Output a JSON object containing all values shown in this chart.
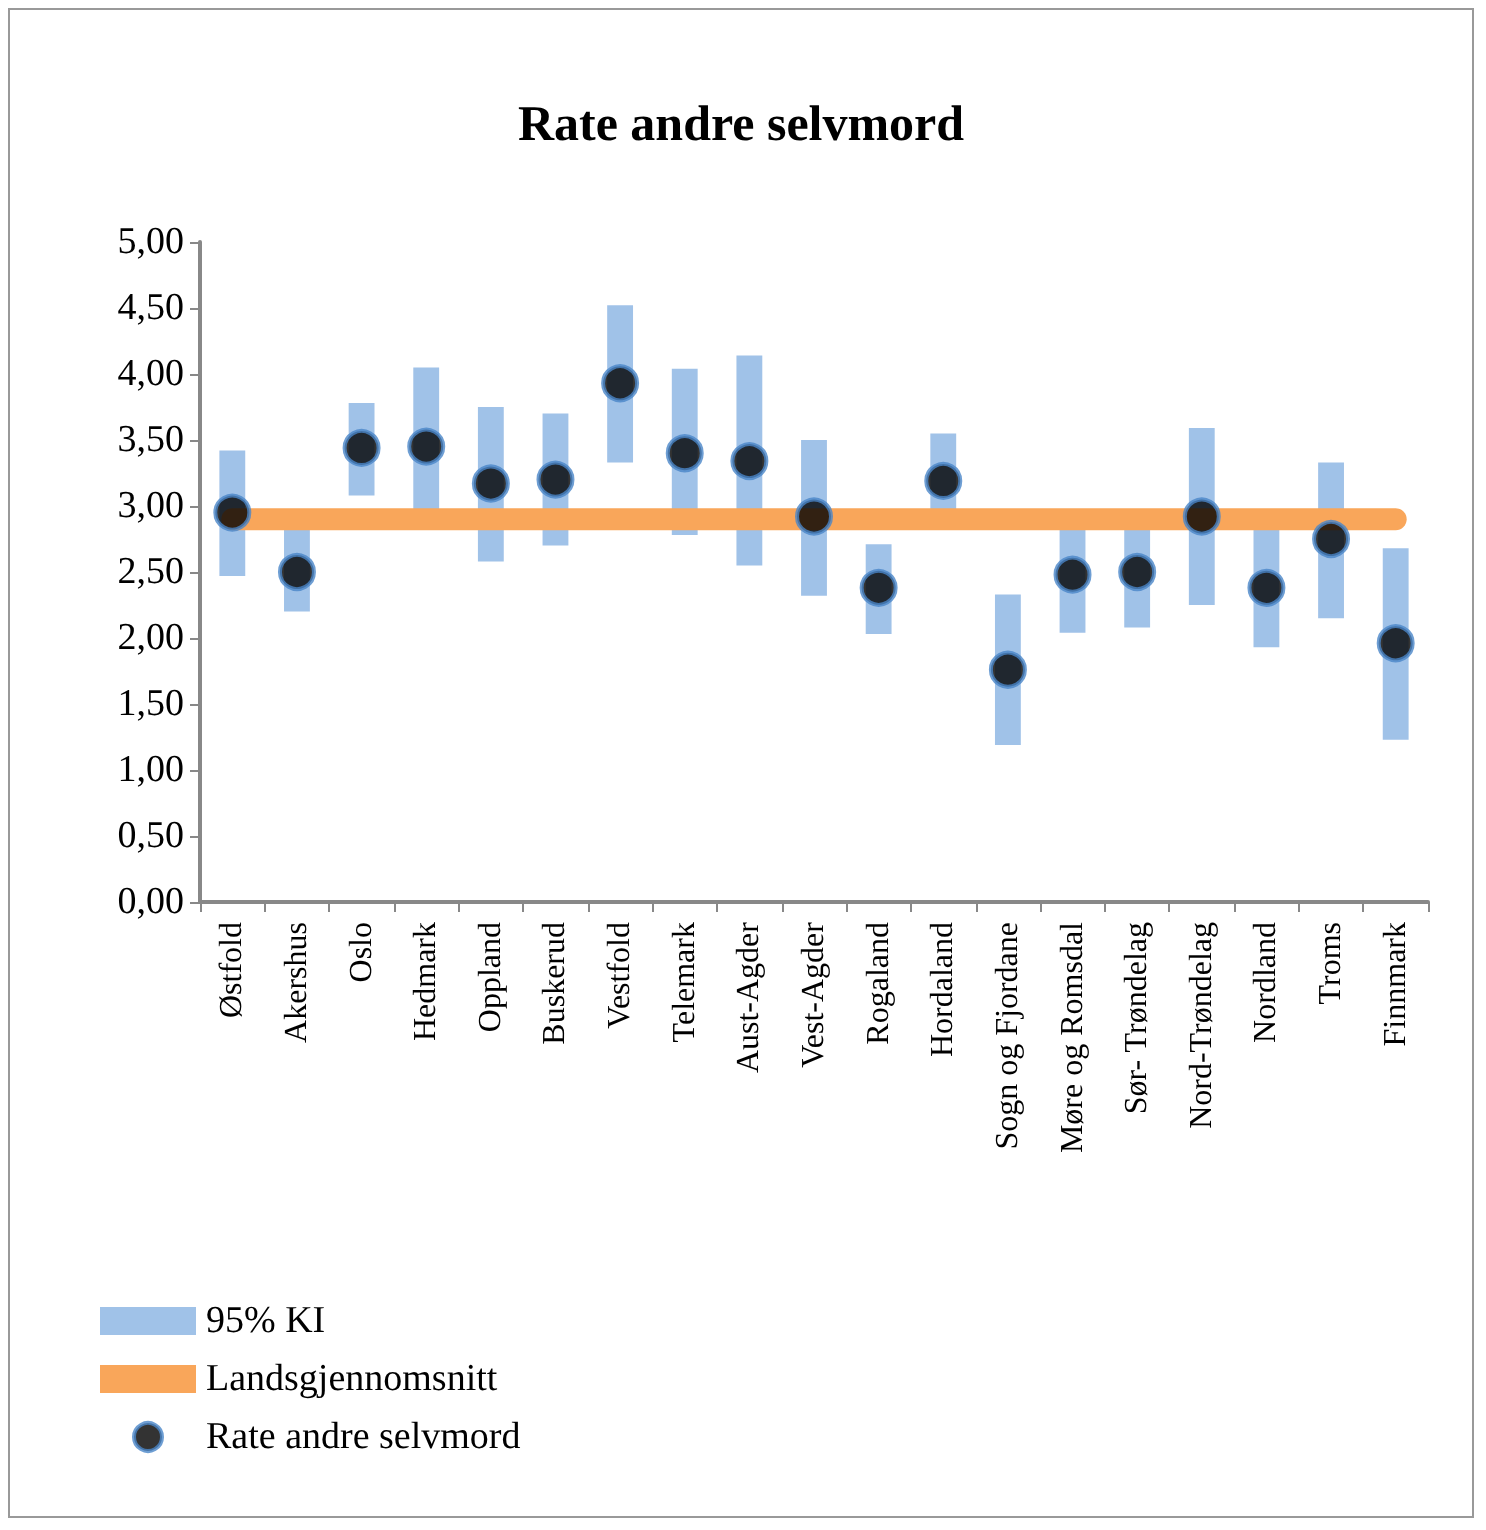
{
  "chart_data": {
    "type": "bar",
    "title": "Rate andre selvmord",
    "categories": [
      "Østfold",
      "Akershus",
      "Oslo",
      "Hedmark",
      "Oppland",
      "Buskerud",
      "Vestfold",
      "Telemark",
      "Aust-Agder",
      "Vest-Agder",
      "Rogaland",
      "Hordaland",
      "Sogn og Fjordane",
      "Møre og Romsdal",
      "Sør- Trøndelag",
      "Nord-Trøndelag",
      "Nordland",
      "Troms",
      "Finnmark"
    ],
    "series": [
      {
        "name": "95% KI",
        "color": "#a0c2e8",
        "base": [
          2.47,
          2.2,
          3.08,
          2.9,
          2.58,
          2.7,
          3.33,
          2.78,
          2.55,
          2.32,
          2.03,
          2.85,
          1.19,
          2.04,
          2.08,
          2.25,
          1.93,
          2.15,
          1.23
        ],
        "values": [
          0.95,
          0.65,
          0.7,
          1.15,
          1.17,
          1.0,
          1.19,
          1.26,
          1.59,
          1.18,
          0.68,
          0.7,
          1.14,
          0.81,
          0.77,
          1.34,
          0.92,
          1.18,
          1.45
        ]
      },
      {
        "name": "Landsgjennomsnitt",
        "type": "line",
        "color": "#f9a65a",
        "values": [
          2.9,
          2.9,
          2.9,
          2.9,
          2.9,
          2.9,
          2.9,
          2.9,
          2.9,
          2.9,
          2.9,
          2.9,
          2.9,
          2.9,
          2.9,
          2.9,
          2.9,
          2.9,
          2.9
        ]
      },
      {
        "name": "Rate andre selvmord",
        "type": "scatter",
        "color": "#000000",
        "marker": "circle",
        "x": [
          "Østfold",
          "Akershus",
          "Oslo",
          "Hedmark",
          "Oppland",
          "Buskerud",
          "Vestfold",
          "Telemark",
          "Aust-Agder",
          "Vest-Agder",
          "Rogaland",
          "Hordaland",
          "Sogn og Fjordane",
          "Møre og Romsdal",
          "Sør- Trøndelag",
          "Nord-Trøndelag",
          "Nordland",
          "Troms",
          "Finnmark"
        ],
        "values": [
          2.95,
          2.5,
          3.44,
          3.45,
          3.17,
          3.2,
          3.93,
          3.4,
          3.34,
          2.92,
          2.38,
          3.19,
          1.76,
          2.48,
          2.5,
          2.92,
          2.38,
          2.75,
          1.96
        ]
      }
    ],
    "ylim": [
      0,
      5
    ],
    "yticks": [
      {
        "value": 0,
        "label": "0,00"
      },
      {
        "value": 0.5,
        "label": "0,50"
      },
      {
        "value": 1,
        "label": "1,00"
      },
      {
        "value": 1.5,
        "label": "1,50"
      },
      {
        "value": 2,
        "label": "2,00"
      },
      {
        "value": 2.5,
        "label": "2,50"
      },
      {
        "value": 3,
        "label": "3,00"
      },
      {
        "value": 3.5,
        "label": "3,50"
      },
      {
        "value": 4,
        "label": "4,00"
      },
      {
        "value": 4.5,
        "label": "4,50"
      },
      {
        "value": 5,
        "label": "5,00"
      }
    ],
    "legend": "bottom left"
  }
}
